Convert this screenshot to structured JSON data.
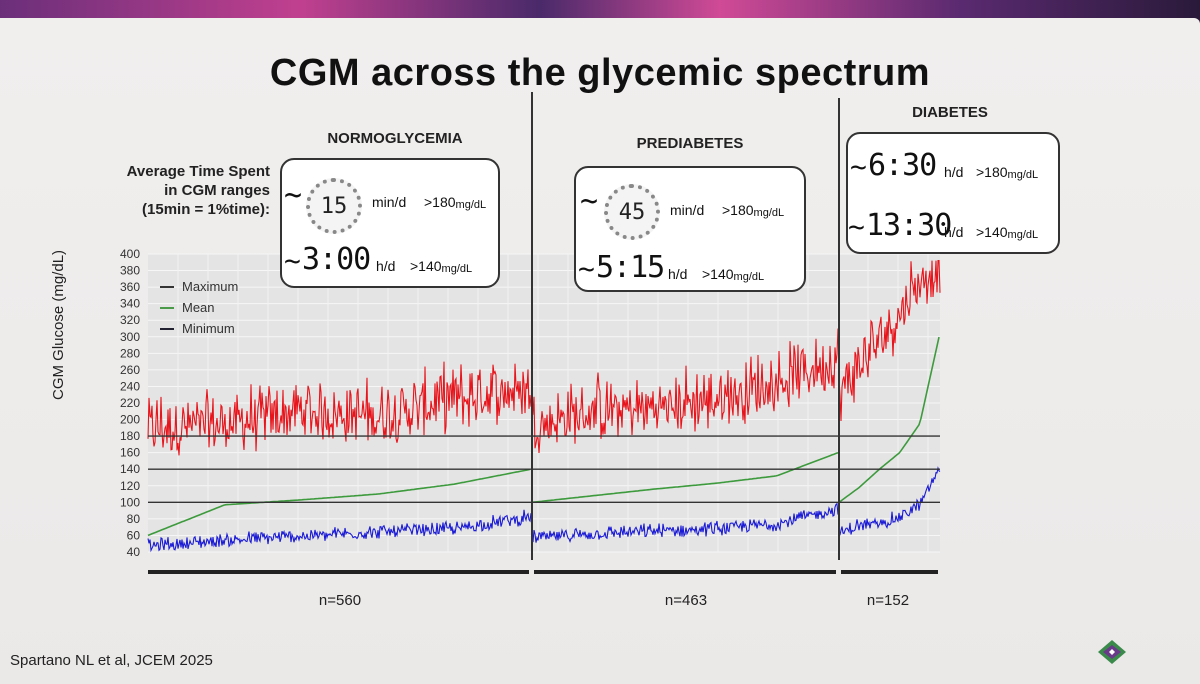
{
  "slide": {
    "title": "CGM across the glycemic spectrum",
    "side_label_lines": [
      "Average Time Spent",
      "in CGM ranges",
      "(15min = 1%time):"
    ],
    "citation": "Spartano NL et al, JCEM 2025"
  },
  "groups": [
    {
      "name": "NORMOGLYCEMIA",
      "n": "n=560",
      "stat1": {
        "prefix": "~",
        "value": "15",
        "unit": "min/d",
        "range": ">180",
        "range_unit": "mg/dL"
      },
      "stat2": {
        "prefix": "~",
        "value": "3:00",
        "unit": "h/d",
        "range": ">140",
        "range_unit": "mg/dL"
      }
    },
    {
      "name": "PREDIABETES",
      "n": "n=463",
      "stat1": {
        "prefix": "~",
        "value": "45",
        "unit": "min/d",
        "range": ">180",
        "range_unit": "mg/dL"
      },
      "stat2": {
        "prefix": "~",
        "value": "5:15",
        "unit": "h/d",
        "range": ">140",
        "range_unit": "mg/dL"
      }
    },
    {
      "name": "DIABETES",
      "n": "n=152",
      "stat1": {
        "prefix": "~",
        "value": "6:30",
        "unit": "h/d",
        "range": ">180",
        "range_unit": "mg/dL"
      },
      "stat2": {
        "prefix": "~",
        "value": "13:30",
        "unit": "h/d",
        "range": ">140",
        "range_unit": "mg/dL"
      }
    }
  ],
  "chart_data": {
    "type": "line",
    "ylabel": "CGM Glucose (mg/dL)",
    "ylim": [
      40,
      400
    ],
    "yticks": [
      40,
      60,
      80,
      100,
      120,
      140,
      160,
      180,
      200,
      220,
      240,
      260,
      280,
      300,
      320,
      340,
      360,
      380,
      400
    ],
    "reference_lines": [
      100,
      140,
      180
    ],
    "grid": true,
    "legend_position": "top-left",
    "colors": {
      "maximum": "#e8141b",
      "mean": "#3d9a3d",
      "minimum": "#1a1ad6",
      "reference": "#333333"
    },
    "series": [
      {
        "name": "Maximum",
        "trend_by_group": [
          [
            180,
            185,
            200,
            195,
            215,
            230
          ],
          [
            185,
            200,
            205,
            215,
            235,
            265
          ],
          [
            220,
            255,
            285,
            320,
            360,
            380
          ]
        ]
      },
      {
        "name": "Mean",
        "trend_by_group": [
          [
            60,
            97,
            103,
            110,
            122,
            140
          ],
          [
            100,
            108,
            116,
            123,
            132,
            160
          ],
          [
            100,
            118,
            140,
            160,
            195,
            305
          ]
        ]
      },
      {
        "name": "Minimum",
        "trend_by_group": [
          [
            45,
            52,
            57,
            62,
            66,
            80
          ],
          [
            55,
            60,
            63,
            66,
            72,
            90
          ],
          [
            60,
            70,
            72,
            80,
            95,
            140
          ]
        ]
      }
    ],
    "group_sizes": [
      560,
      463,
      152
    ]
  }
}
